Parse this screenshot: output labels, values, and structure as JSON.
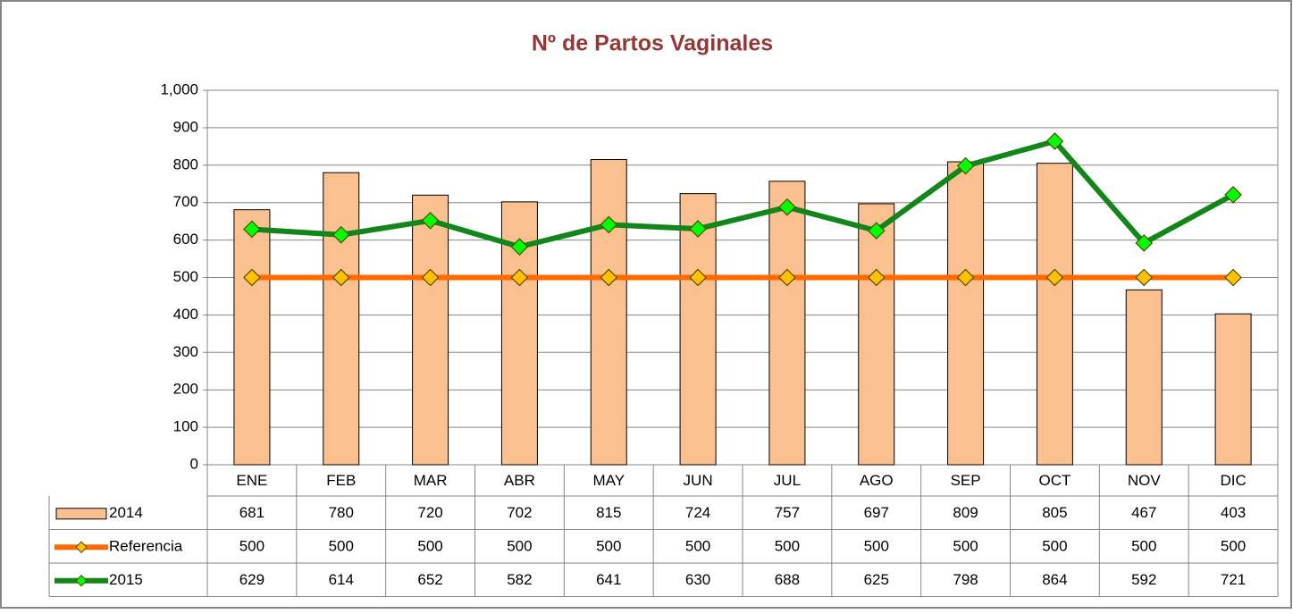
{
  "chart_data": {
    "type": "combo",
    "title": "Nº de Partos Vaginales",
    "categories": [
      "ENE",
      "FEB",
      "MAR",
      "ABR",
      "MAY",
      "JUN",
      "JUL",
      "AGO",
      "SEP",
      "OCT",
      "NOV",
      "DIC"
    ],
    "series": [
      {
        "name": "2014",
        "type": "bar",
        "color": "#fac090",
        "values": [
          681,
          780,
          720,
          702,
          815,
          724,
          757,
          697,
          809,
          805,
          467,
          403
        ]
      },
      {
        "name": "Referencia",
        "type": "line",
        "color": "#ff6a00",
        "marker_color": "#ffc000",
        "values": [
          500,
          500,
          500,
          500,
          500,
          500,
          500,
          500,
          500,
          500,
          500,
          500
        ]
      },
      {
        "name": "2015",
        "type": "line",
        "color": "#13861a",
        "marker_color": "#00ff00",
        "values": [
          629,
          614,
          652,
          582,
          641,
          630,
          688,
          625,
          798,
          864,
          592,
          721
        ]
      }
    ],
    "ylim": [
      0,
      1000
    ],
    "yticks": [
      0,
      100,
      200,
      300,
      400,
      500,
      600,
      700,
      800,
      900,
      {
        "value": 1000,
        "label": "1,000"
      }
    ],
    "grid": true
  }
}
